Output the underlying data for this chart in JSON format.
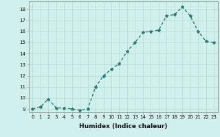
{
  "x": [
    0,
    1,
    2,
    3,
    4,
    5,
    6,
    7,
    8,
    9,
    10,
    11,
    12,
    13,
    14,
    15,
    16,
    17,
    18,
    19,
    20,
    21,
    22,
    23
  ],
  "y": [
    9,
    9.2,
    9.9,
    9.1,
    9.1,
    9.0,
    8.9,
    9.0,
    11.0,
    12.0,
    12.6,
    13.1,
    14.2,
    15.0,
    15.9,
    16.0,
    16.1,
    17.4,
    17.5,
    18.2,
    17.4,
    16.0,
    15.1,
    15.0
  ],
  "bg_color": "#cff0ec",
  "line_color": "#2e7d6e",
  "marker": "*",
  "marker_size": 3,
  "xlabel": "Humidex (Indice chaleur)",
  "ylim_min": 8.7,
  "ylim_max": 18.7,
  "xlim_min": -0.5,
  "xlim_max": 23.5,
  "yticks": [
    9,
    10,
    11,
    12,
    13,
    14,
    15,
    16,
    17,
    18
  ],
  "xticks": [
    0,
    1,
    2,
    3,
    4,
    5,
    6,
    7,
    8,
    9,
    10,
    11,
    12,
    13,
    14,
    15,
    16,
    17,
    18,
    19,
    20,
    21,
    22,
    23
  ],
  "grid_color": "#b8dbd6",
  "xlabel_fontsize": 6.5,
  "tick_fontsize": 5,
  "linewidth": 1.0
}
